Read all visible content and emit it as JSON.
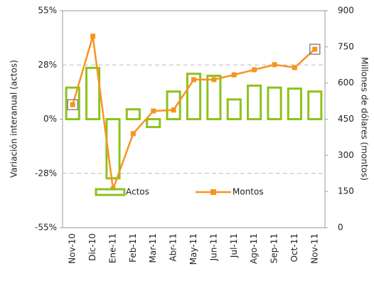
{
  "chart_data": {
    "type": "bar_line",
    "categories": [
      "Nov-10",
      "Dic-10",
      "Ene-11",
      "Feb-11",
      "Mar-11",
      "Abr-11",
      "May-11",
      "Jun-11",
      "Jul-11",
      "Ago-11",
      "Sep-11",
      "Oct-11",
      "Nov-11"
    ],
    "series": [
      {
        "name": "Actos",
        "color": "#8dc21f",
        "type": "bar",
        "values": [
          16,
          26,
          -30,
          5,
          -4,
          14,
          23,
          22,
          10,
          17,
          16,
          15.5,
          14
        ]
      },
      {
        "name": "Montos",
        "color": "#f7941d",
        "type": "line",
        "axis": "y2",
        "values": [
          510,
          794,
          160,
          390,
          484,
          488,
          614,
          614,
          634,
          655,
          676,
          664,
          740
        ]
      }
    ],
    "ylabel": "Variación interanual (actos)",
    "y2label": "Millones de dólares (montos)",
    "ylim": [
      -55,
      55
    ],
    "yticks": [
      {
        "value": -55,
        "label": "-55%"
      },
      {
        "value": -27.5,
        "label": "-28%"
      },
      {
        "value": 0,
        "label": "0%"
      },
      {
        "value": 27.5,
        "label": "28%"
      },
      {
        "value": 55,
        "label": "55%"
      }
    ],
    "y2lim": [
      0,
      900
    ],
    "y2ticks": [
      0,
      150,
      300,
      450,
      600,
      750,
      900
    ],
    "grid": true,
    "legend": "bottom"
  }
}
